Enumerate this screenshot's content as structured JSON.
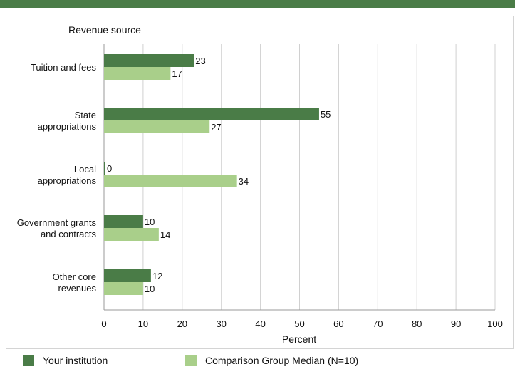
{
  "chart_data": {
    "type": "bar",
    "orientation": "horizontal",
    "title": "Revenue source",
    "xlabel": "Percent",
    "ylabel": "Revenue source",
    "xlim": [
      0,
      100
    ],
    "xticks": [
      0,
      10,
      20,
      30,
      40,
      50,
      60,
      70,
      80,
      90,
      100
    ],
    "grid": true,
    "legend_position": "bottom",
    "categories": [
      [
        "Tuition and fees"
      ],
      [
        "State",
        "appropriations"
      ],
      [
        "Local",
        "appropriations"
      ],
      [
        "Government grants",
        "and contracts"
      ],
      [
        "Other core",
        "revenues"
      ]
    ],
    "series": [
      {
        "name": "Your institution",
        "color": "#4a7c47",
        "values": [
          23,
          55,
          0,
          10,
          12
        ]
      },
      {
        "name": "Comparison Group Median (N=10)",
        "color": "#a9cf8a",
        "values": [
          17,
          27,
          34,
          14,
          10
        ]
      }
    ]
  },
  "colors": {
    "top_bar": "#4a7c47",
    "gridline": "#d0d0d0",
    "axis": "#999999",
    "text": "#111111"
  }
}
